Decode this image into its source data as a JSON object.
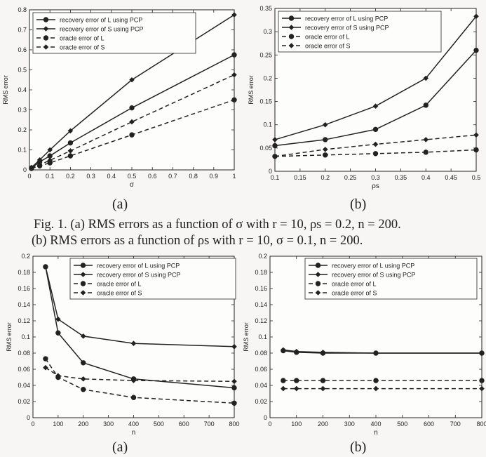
{
  "figure": {
    "caption_line1": "Fig. 1.   (a) RMS errors as a function of σ with r = 10, ρs = 0.2, n = 200.",
    "caption_line2": "(b) RMS errors as a function of ρs with r = 10, σ = 0.1, n = 200.",
    "sub_labels": [
      "(a)",
      "(b)",
      "(a)",
      "(b)"
    ]
  },
  "chart_data": [
    {
      "id": "top-left",
      "type": "line",
      "title": "",
      "xlabel": "σ",
      "ylabel": "RMS error",
      "xlim": [
        0,
        1
      ],
      "ylim": [
        0,
        0.8
      ],
      "xticks": [
        0,
        0.1,
        0.2,
        0.3,
        0.4,
        0.5,
        0.6,
        0.7,
        0.8,
        0.9,
        1
      ],
      "xtick_labels": [
        "0",
        "0.1",
        "0.2",
        "0.3",
        "0.4",
        "0.5",
        "0.6",
        "0.7",
        "0.8",
        "0.9",
        "1"
      ],
      "yticks": [
        0,
        0.1,
        0.2,
        0.3,
        0.4,
        0.5,
        0.6,
        0.7,
        0.8
      ],
      "ytick_labels": [
        "0",
        "0.1",
        "0.2",
        "0.3",
        "0.4",
        "0.5",
        "0.6",
        "0.7",
        "0.8"
      ],
      "legend_position": "top-left",
      "x": [
        0.01,
        0.05,
        0.1,
        0.2,
        0.5,
        1
      ],
      "series": [
        {
          "name": "recovery error of L using PCP",
          "values": [
            0.01,
            0.04,
            0.07,
            0.135,
            0.31,
            0.575
          ],
          "style": "solid",
          "marker": "circle"
        },
        {
          "name": "recovery error of S using PCP",
          "values": [
            0.012,
            0.05,
            0.1,
            0.195,
            0.45,
            0.775
          ],
          "style": "solid",
          "marker": "diamond"
        },
        {
          "name": "oracle error of L",
          "values": [
            0.007,
            0.02,
            0.035,
            0.07,
            0.175,
            0.35
          ],
          "style": "dashed",
          "marker": "circle"
        },
        {
          "name": "oracle error of S",
          "values": [
            0.009,
            0.025,
            0.048,
            0.095,
            0.24,
            0.475
          ],
          "style": "dashed",
          "marker": "diamond"
        }
      ]
    },
    {
      "id": "top-right",
      "type": "line",
      "title": "",
      "xlabel": "ρs",
      "ylabel": "RMS error",
      "xlim": [
        0.1,
        0.5
      ],
      "ylim": [
        0,
        0.35
      ],
      "xticks": [
        0.1,
        0.15,
        0.2,
        0.25,
        0.3,
        0.35,
        0.4,
        0.45,
        0.5
      ],
      "xtick_labels": [
        "0.1",
        "0.15",
        "0.2",
        "0.25",
        "0.3",
        "0.35",
        "0.4",
        "0.45",
        "0.5"
      ],
      "yticks": [
        0,
        0.05,
        0.1,
        0.15,
        0.2,
        0.25,
        0.3,
        0.35
      ],
      "ytick_labels": [
        "0",
        "0.05",
        "0.1",
        "0.15",
        "0.2",
        "0.25",
        "0.3",
        "0.35"
      ],
      "legend_position": "top-left",
      "x": [
        0.1,
        0.2,
        0.3,
        0.4,
        0.5
      ],
      "series": [
        {
          "name": "recovery error of L using PCP",
          "values": [
            0.055,
            0.068,
            0.09,
            0.142,
            0.26
          ],
          "style": "solid",
          "marker": "circle"
        },
        {
          "name": "recovery error of S using PCP",
          "values": [
            0.068,
            0.1,
            0.14,
            0.2,
            0.333
          ],
          "style": "solid",
          "marker": "diamond"
        },
        {
          "name": "oracle error of L",
          "values": [
            0.032,
            0.035,
            0.038,
            0.041,
            0.046
          ],
          "style": "dashed",
          "marker": "circle"
        },
        {
          "name": "oracle error of S",
          "values": [
            0.032,
            0.047,
            0.058,
            0.068,
            0.078
          ],
          "style": "dashed",
          "marker": "diamond"
        }
      ]
    },
    {
      "id": "bottom-left",
      "type": "line",
      "title": "",
      "xlabel": "n",
      "ylabel": "RMS error",
      "xlim": [
        0,
        800
      ],
      "ylim": [
        0,
        0.2
      ],
      "xticks": [
        0,
        100,
        200,
        300,
        400,
        500,
        600,
        700,
        800
      ],
      "xtick_labels": [
        "0",
        "100",
        "200",
        "300",
        "400",
        "500",
        "600",
        "700",
        "800"
      ],
      "yticks": [
        0,
        0.02,
        0.04,
        0.06,
        0.08,
        0.1,
        0.12,
        0.14,
        0.16,
        0.18,
        0.2
      ],
      "ytick_labels": [
        "0",
        "0.02",
        "0.04",
        "0.06",
        "0.08",
        "0.1",
        "0.12",
        "0.14",
        "0.16",
        "0.18",
        "0.2"
      ],
      "legend_position": "top-right",
      "x": [
        50,
        100,
        200,
        400,
        800
      ],
      "series": [
        {
          "name": "recovery error of L using PCP",
          "values": [
            0.187,
            0.105,
            0.068,
            0.048,
            0.037
          ],
          "style": "solid",
          "marker": "circle"
        },
        {
          "name": "recovery error of S using PCP",
          "values": [
            0.187,
            0.122,
            0.101,
            0.092,
            0.088
          ],
          "style": "solid",
          "marker": "diamond"
        },
        {
          "name": "oracle error of L",
          "values": [
            0.073,
            0.05,
            0.035,
            0.025,
            0.018
          ],
          "style": "dashed",
          "marker": "circle"
        },
        {
          "name": "oracle error of S",
          "values": [
            0.062,
            0.052,
            0.048,
            0.046,
            0.045
          ],
          "style": "dashed",
          "marker": "diamond"
        }
      ]
    },
    {
      "id": "bottom-right",
      "type": "line",
      "title": "",
      "xlabel": "n",
      "ylabel": "RMS error",
      "xlim": [
        0,
        800
      ],
      "ylim": [
        0,
        0.2
      ],
      "xticks": [
        0,
        100,
        200,
        300,
        400,
        500,
        600,
        700,
        800
      ],
      "xtick_labels": [
        "0",
        "100",
        "200",
        "300",
        "400",
        "500",
        "600",
        "700",
        "800"
      ],
      "yticks": [
        0,
        0.02,
        0.04,
        0.06,
        0.08,
        0.1,
        0.12,
        0.14,
        0.16,
        0.18,
        0.2
      ],
      "ytick_labels": [
        "0",
        "0.02",
        "0.04",
        "0.06",
        "0.08",
        "0.1",
        "0.12",
        "0.14",
        "0.16",
        "0.18",
        "0.2"
      ],
      "legend_position": "top-right",
      "x": [
        50,
        100,
        200,
        400,
        800
      ],
      "series": [
        {
          "name": "recovery error of L using PCP",
          "values": [
            0.083,
            0.081,
            0.08,
            0.08,
            0.08
          ],
          "style": "solid",
          "marker": "circle"
        },
        {
          "name": "recovery error of S using PCP",
          "values": [
            0.084,
            0.082,
            0.081,
            0.08,
            0.08
          ],
          "style": "solid",
          "marker": "diamond"
        },
        {
          "name": "oracle error of L",
          "values": [
            0.046,
            0.046,
            0.046,
            0.046,
            0.046
          ],
          "style": "dashed",
          "marker": "circle"
        },
        {
          "name": "oracle error of S",
          "values": [
            0.036,
            0.036,
            0.036,
            0.036,
            0.036
          ],
          "style": "dashed",
          "marker": "diamond"
        }
      ]
    }
  ]
}
